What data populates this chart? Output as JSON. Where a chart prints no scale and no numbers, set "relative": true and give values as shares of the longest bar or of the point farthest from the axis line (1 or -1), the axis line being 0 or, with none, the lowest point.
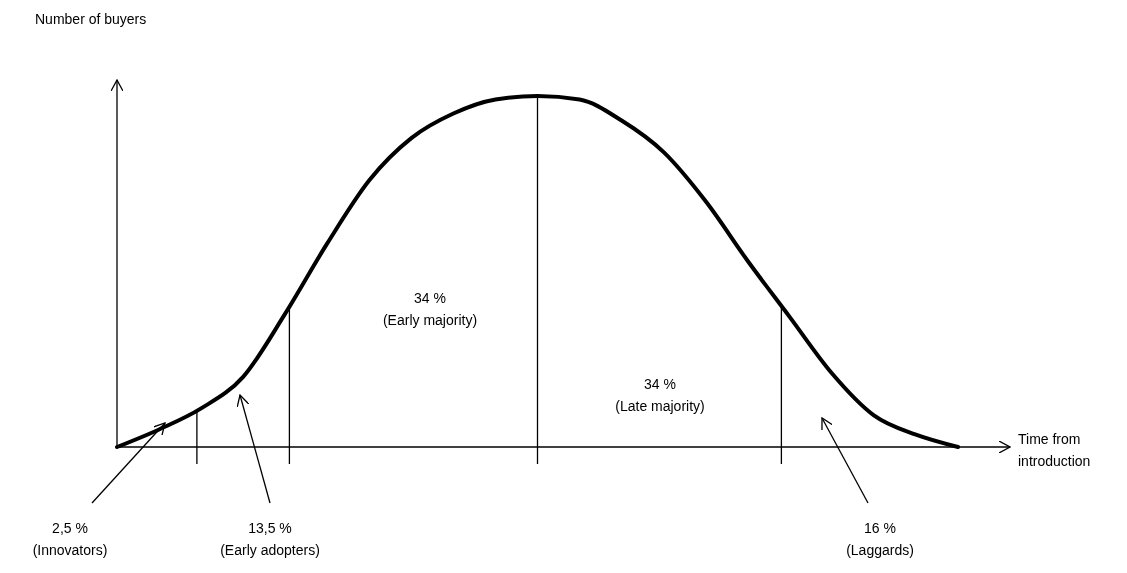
{
  "chart_data": {
    "type": "line",
    "relative": true,
    "xlabel": "Time from\nintroduction",
    "ylabel": "Number of buyers",
    "categories": [
      null,
      null,
      null,
      null,
      null,
      null,
      null,
      null,
      null,
      null,
      null,
      null,
      null,
      null,
      null,
      null,
      null,
      null,
      null,
      null,
      null
    ],
    "series": [
      {
        "color": "#000000",
        "values": [
          0,
          0.05,
          0.11,
          0.2,
          0.38,
          0.58,
          0.76,
          0.88,
          0.95,
          0.99,
          1,
          0.99,
          0.93,
          0.84,
          0.7,
          0.53,
          0.37,
          0.21,
          0.09,
          0.035,
          0
        ]
      }
    ],
    "annotations": [
      "2,5 %\n(Innovators)",
      "13,5 %\n(Early adopters)",
      "34 %\n(Early majority)",
      "34 %\n(Late majority)",
      "16 %\n(Laggards)"
    ]
  }
}
